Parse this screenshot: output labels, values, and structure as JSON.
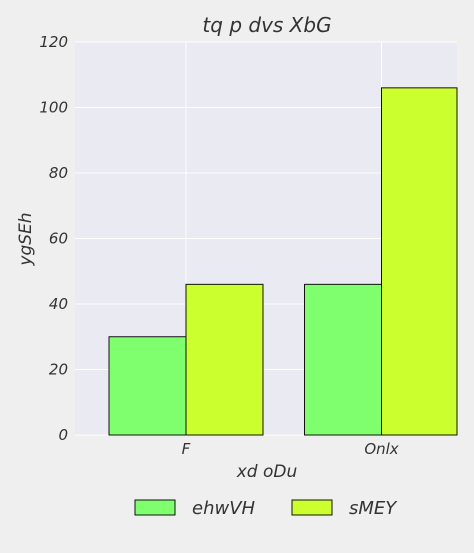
{
  "chart_data": {
    "type": "bar",
    "title": "tq p dvs XbG",
    "xlabel": "xd oDu",
    "ylabel": "ygSEh",
    "categories": [
      "F",
      "Onlx"
    ],
    "series": [
      {
        "name": "ehwVH",
        "values": [
          30,
          46
        ],
        "color": "#7fff6e"
      },
      {
        "name": "sMEY",
        "values": [
          46,
          106
        ],
        "color": "#ccff2e"
      }
    ],
    "ylim": [
      0,
      120
    ],
    "yticks": [
      0,
      20,
      40,
      60,
      80,
      100,
      120
    ],
    "grid": true,
    "legend_position": "bottom"
  },
  "colors": {
    "plot_background": "#eaeaf2",
    "figure_background": "#efefef",
    "grid": "#ffffff",
    "bar_edge": "#111111"
  }
}
